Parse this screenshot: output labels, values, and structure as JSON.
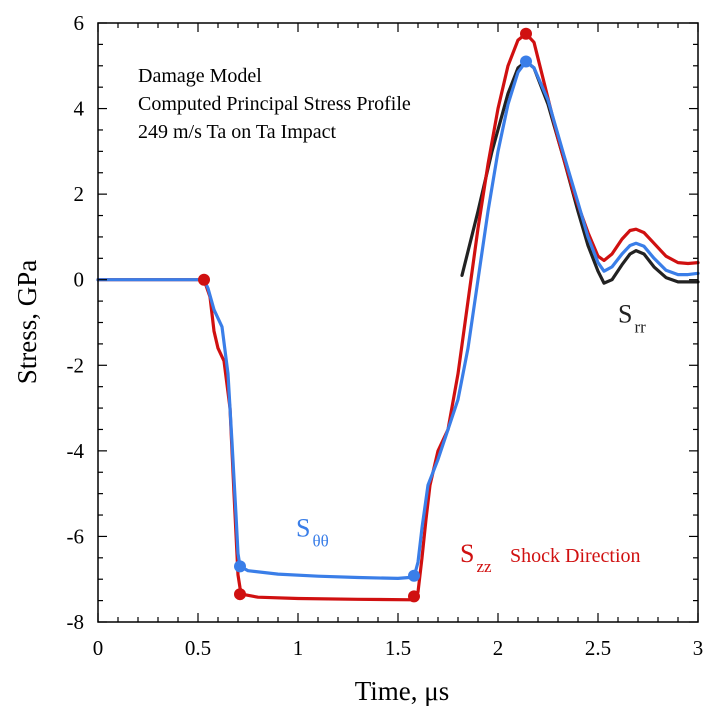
{
  "chart_data": {
    "type": "line",
    "title": "",
    "xlabel": "Time, μs",
    "ylabel": "Stress, GPa",
    "xlim": [
      0,
      3
    ],
    "ylim": [
      -8,
      6
    ],
    "x_ticks": [
      0,
      0.5,
      1,
      1.5,
      2,
      2.5,
      3
    ],
    "x_tick_labels": [
      "0",
      "0.5",
      "1",
      "1.5",
      "2",
      "2.5",
      "3"
    ],
    "y_ticks": [
      -8,
      -6,
      -4,
      -2,
      0,
      2,
      4,
      6
    ],
    "y_tick_labels": [
      "-8",
      "-6",
      "-4",
      "-2",
      "0",
      "2",
      "4",
      "6"
    ],
    "grid": false,
    "annotation_lines": [
      "Damage Model",
      "Computed Principal Stress Profile",
      "249 m/s Ta on Ta Impact"
    ],
    "series": [
      {
        "name": "Srr",
        "label_main": "S",
        "label_sub": "rr",
        "color": "#222222",
        "points": [
          [
            1.82,
            0.1
          ],
          [
            1.9,
            1.6
          ],
          [
            1.97,
            3.0
          ],
          [
            2.05,
            4.35
          ],
          [
            2.1,
            4.95
          ],
          [
            2.14,
            5.1
          ],
          [
            2.18,
            4.95
          ],
          [
            2.25,
            4.1
          ],
          [
            2.33,
            2.8
          ],
          [
            2.4,
            1.6
          ],
          [
            2.45,
            0.8
          ],
          [
            2.5,
            0.2
          ],
          [
            2.53,
            -0.08
          ],
          [
            2.57,
            0.0
          ],
          [
            2.62,
            0.35
          ],
          [
            2.66,
            0.6
          ],
          [
            2.69,
            0.68
          ],
          [
            2.73,
            0.6
          ],
          [
            2.78,
            0.3
          ],
          [
            2.84,
            0.05
          ],
          [
            2.9,
            -0.05
          ],
          [
            3.0,
            -0.05
          ]
        ]
      },
      {
        "name": "Szz",
        "label_main": "S",
        "label_sub": "zz",
        "extra_label": "Shock Direction",
        "color": "#d01010",
        "points": [
          [
            0,
            0
          ],
          [
            0.53,
            0
          ],
          [
            0.56,
            -0.4
          ],
          [
            0.58,
            -1.2
          ],
          [
            0.6,
            -1.6
          ],
          [
            0.63,
            -1.9
          ],
          [
            0.66,
            -3.0
          ],
          [
            0.68,
            -5.0
          ],
          [
            0.7,
            -6.9
          ],
          [
            0.71,
            -7.2
          ],
          [
            0.72,
            -7.35
          ],
          [
            0.8,
            -7.42
          ],
          [
            1.0,
            -7.45
          ],
          [
            1.3,
            -7.47
          ],
          [
            1.58,
            -7.48
          ],
          [
            1.6,
            -7.3
          ],
          [
            1.62,
            -6.5
          ],
          [
            1.64,
            -5.6
          ],
          [
            1.66,
            -4.8
          ],
          [
            1.7,
            -4.0
          ],
          [
            1.75,
            -3.5
          ],
          [
            1.8,
            -2.2
          ],
          [
            1.85,
            -0.5
          ],
          [
            1.9,
            1.2
          ],
          [
            1.95,
            2.7
          ],
          [
            2.0,
            4.0
          ],
          [
            2.05,
            5.0
          ],
          [
            2.1,
            5.6
          ],
          [
            2.14,
            5.75
          ],
          [
            2.18,
            5.55
          ],
          [
            2.22,
            4.8
          ],
          [
            2.3,
            3.3
          ],
          [
            2.38,
            2.0
          ],
          [
            2.45,
            1.1
          ],
          [
            2.5,
            0.55
          ],
          [
            2.53,
            0.45
          ],
          [
            2.57,
            0.6
          ],
          [
            2.62,
            0.95
          ],
          [
            2.66,
            1.15
          ],
          [
            2.69,
            1.18
          ],
          [
            2.73,
            1.1
          ],
          [
            2.78,
            0.85
          ],
          [
            2.84,
            0.55
          ],
          [
            2.9,
            0.4
          ],
          [
            2.95,
            0.38
          ],
          [
            3.0,
            0.4
          ]
        ]
      },
      {
        "name": "Sθθ",
        "label_main": "S",
        "label_sub": "θθ",
        "color": "#3a7ee8",
        "points": [
          [
            0,
            0
          ],
          [
            0.53,
            0
          ],
          [
            0.55,
            -0.2
          ],
          [
            0.58,
            -0.7
          ],
          [
            0.62,
            -1.1
          ],
          [
            0.65,
            -2.2
          ],
          [
            0.67,
            -3.8
          ],
          [
            0.69,
            -5.5
          ],
          [
            0.7,
            -6.4
          ],
          [
            0.71,
            -6.7
          ],
          [
            0.75,
            -6.8
          ],
          [
            0.9,
            -6.88
          ],
          [
            1.1,
            -6.93
          ],
          [
            1.3,
            -6.96
          ],
          [
            1.5,
            -6.98
          ],
          [
            1.58,
            -6.95
          ],
          [
            1.6,
            -6.6
          ],
          [
            1.62,
            -5.8
          ],
          [
            1.65,
            -4.8
          ],
          [
            1.7,
            -4.2
          ],
          [
            1.75,
            -3.5
          ],
          [
            1.8,
            -2.8
          ],
          [
            1.85,
            -1.6
          ],
          [
            1.9,
            0.0
          ],
          [
            1.95,
            1.6
          ],
          [
            2.0,
            3.0
          ],
          [
            2.05,
            4.1
          ],
          [
            2.1,
            4.85
          ],
          [
            2.14,
            5.1
          ],
          [
            2.18,
            4.95
          ],
          [
            2.25,
            4.2
          ],
          [
            2.33,
            2.9
          ],
          [
            2.4,
            1.8
          ],
          [
            2.45,
            1.0
          ],
          [
            2.5,
            0.4
          ],
          [
            2.53,
            0.2
          ],
          [
            2.57,
            0.3
          ],
          [
            2.62,
            0.6
          ],
          [
            2.66,
            0.8
          ],
          [
            2.69,
            0.85
          ],
          [
            2.73,
            0.78
          ],
          [
            2.78,
            0.5
          ],
          [
            2.84,
            0.22
          ],
          [
            2.9,
            0.12
          ],
          [
            2.95,
            0.12
          ],
          [
            3.0,
            0.15
          ]
        ]
      }
    ],
    "markers": [
      {
        "series": "Szz",
        "x": 0.53,
        "y": 0,
        "color": "#d01010"
      },
      {
        "series": "Szz",
        "x": 0.71,
        "y": -7.35,
        "color": "#d01010"
      },
      {
        "series": "Szz",
        "x": 1.58,
        "y": -7.4,
        "color": "#d01010"
      },
      {
        "series": "Szz",
        "x": 2.14,
        "y": 5.75,
        "color": "#d01010"
      },
      {
        "series": "Sθθ",
        "x": 0.71,
        "y": -6.7,
        "color": "#3a7ee8"
      },
      {
        "series": "Sθθ",
        "x": 1.58,
        "y": -6.92,
        "color": "#3a7ee8"
      },
      {
        "series": "Sθθ",
        "x": 2.14,
        "y": 5.1,
        "color": "#3a7ee8"
      }
    ],
    "series_label_positions": [
      {
        "series": "Sθθ",
        "x": 0.99,
        "y": -6.0
      },
      {
        "series": "Szz",
        "x": 1.81,
        "y": -6.6
      },
      {
        "series": "Szz extra",
        "x": 2.06,
        "y": -6.6
      },
      {
        "series": "Srr",
        "x": 2.6,
        "y": -1.0
      }
    ]
  }
}
